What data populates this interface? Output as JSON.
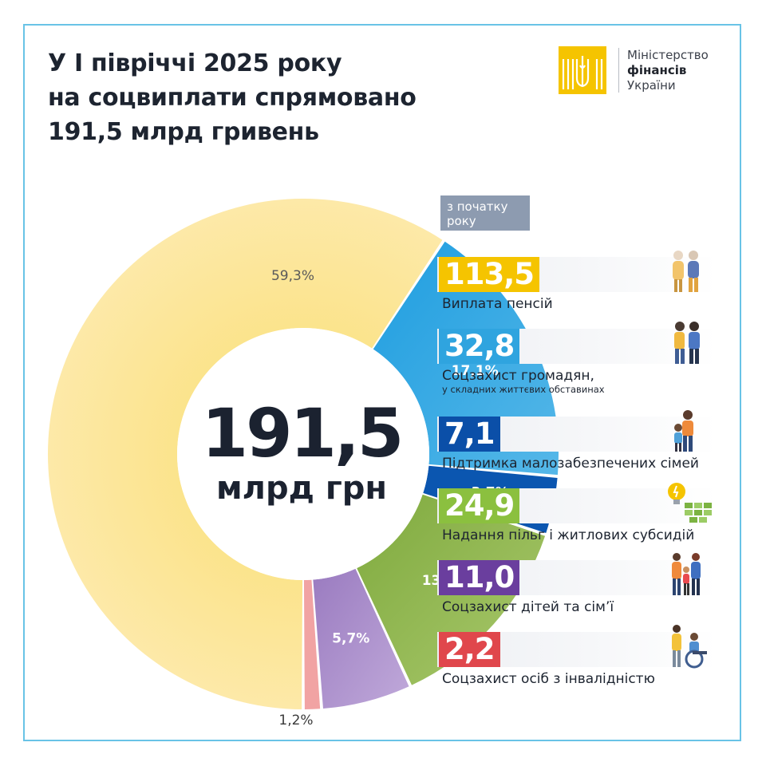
{
  "title_lines": [
    "У І півріччі 2025 року",
    "на соцвиплати спрямовано",
    "191,5 млрд гривень"
  ],
  "logo": {
    "line1": "Міністерство",
    "line2": "фінансів",
    "line3": "України",
    "mark_icon": "trident-icon",
    "color": "#F5C400"
  },
  "center": {
    "value": "191,5",
    "unit": "млрд грн"
  },
  "period_label": "з початку року",
  "chart_data": {
    "type": "pie",
    "variant": "donut",
    "total": 191.5,
    "total_unit": "млрд грн",
    "categories": [
      "Виплата пенсій",
      "Соцзахист громадян, у складних життєвих обставинах",
      "Підтримка малозабезпечених сімей",
      "Надання пільг і житлових субсидій",
      "Соцзахист дітей та сім’ї",
      "Соцзахист осіб з інвалідністю"
    ],
    "values": [
      113.5,
      32.8,
      7.1,
      24.9,
      11.0,
      2.2
    ],
    "percent_labels": [
      "59,3%",
      "17,1%",
      "3,7%",
      "13,0%",
      "5,7%",
      "1,2%"
    ],
    "colors": [
      "#F9D96A",
      "#2FA4DF",
      "#0B56B0",
      "#8BB04C",
      "#A487C7",
      "#F1A3A3"
    ]
  },
  "items": [
    {
      "value": "113,5",
      "label": "Виплата пенсій",
      "sub": "",
      "color": "#F5C400",
      "icon": "elderly-couple-icon"
    },
    {
      "value": "32,8",
      "label": "Соцзахист громадян,",
      "sub": "у складних життєвих обставинах",
      "color": "#2FA4DF",
      "icon": "person-support-icon"
    },
    {
      "value": "7,1",
      "label": "Підтримка малозабезпечених сімей",
      "sub": "",
      "color": "#0B4FA8",
      "icon": "parent-child-icon"
    },
    {
      "value": "24,9",
      "label": "Надання пільг і житлових субсидій",
      "sub": "",
      "color": "#8BC03F",
      "icon": "lightbulb-houses-icon"
    },
    {
      "value": "11,0",
      "label": "Соцзахист дітей та сім’ї",
      "sub": "",
      "color": "#6A3E9E",
      "icon": "family-icon"
    },
    {
      "value": "2,2",
      "label": "Соцзахист осіб з інвалідністю",
      "sub": "",
      "color": "#E0474C",
      "icon": "wheelchair-icon"
    }
  ]
}
